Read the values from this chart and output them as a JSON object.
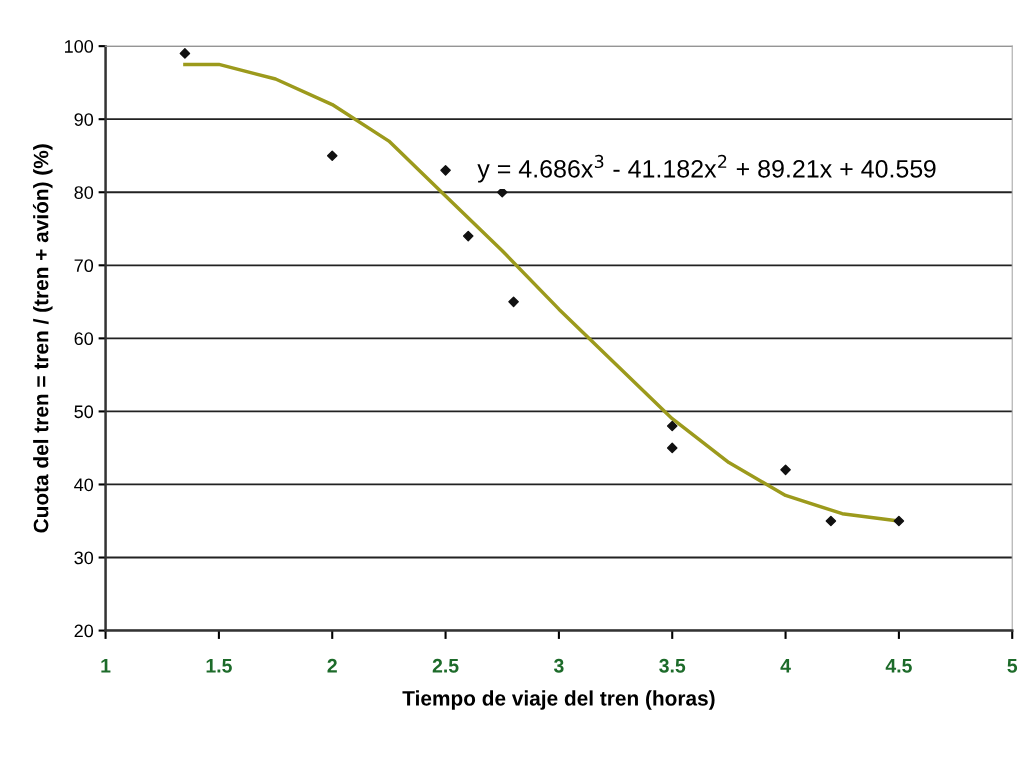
{
  "chart_data": {
    "type": "scatter",
    "xlabel": "Tiempo de viaje del tren (horas)",
    "ylabel": "Cuota del tren = tren / (tren + avión) (%)",
    "xlim": [
      1,
      5
    ],
    "xticks": [
      1,
      1.5,
      2,
      2.5,
      3,
      3.5,
      4,
      4.5,
      5
    ],
    "ylim": [
      20,
      100
    ],
    "yticks": [
      20,
      30,
      40,
      50,
      60,
      70,
      80,
      90,
      100
    ],
    "grid": "y",
    "annotations": [
      "y = 4.686x$^{3}$ - 41.182x$^{2}$ + 89.21x + 40.559"
    ],
    "series": [
      {
        "marker": "diamond",
        "color": "#111111",
        "x": [
          1.35,
          2.0,
          2.5,
          2.6,
          2.75,
          2.8,
          3.5,
          3.5,
          4.0,
          4.2,
          4.5
        ],
        "values": [
          99,
          85,
          83,
          74,
          80,
          65,
          48,
          45,
          42,
          35,
          35
        ]
      },
      {
        "type": "line",
        "marker": "none",
        "color": "#9c9a1c",
        "x": [
          1.35,
          1.5,
          1.75,
          2.0,
          2.25,
          2.5,
          2.75,
          3.0,
          3.25,
          3.5,
          3.75,
          4.0,
          4.25,
          4.5
        ],
        "values": [
          97.5,
          97.5,
          95.5,
          92,
          87,
          79.5,
          72,
          64,
          56.5,
          49,
          43,
          38.5,
          36,
          35
        ]
      }
    ]
  }
}
